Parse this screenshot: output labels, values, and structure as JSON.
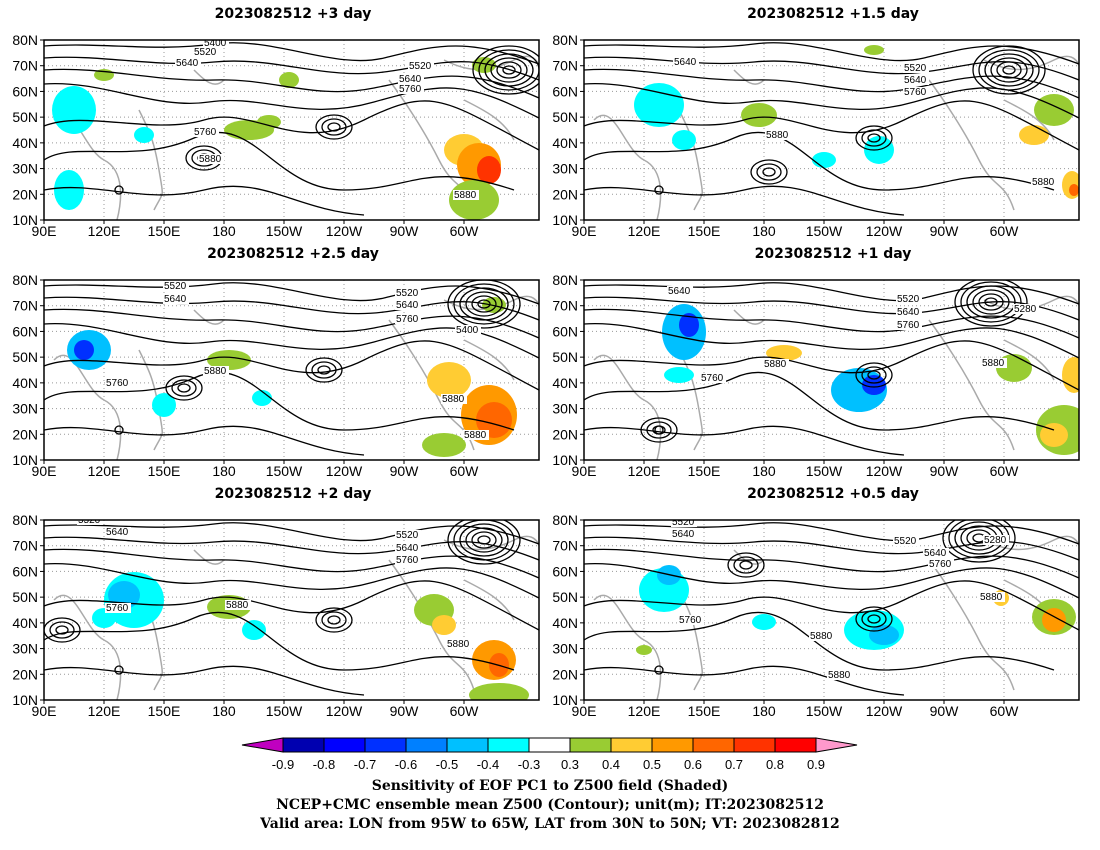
{
  "panels": [
    {
      "title": "2023082512  +3 day"
    },
    {
      "title": "2023082512  +1.5 day"
    },
    {
      "title": "2023082512  +2.5 day"
    },
    {
      "title": "2023082512  +1 day"
    },
    {
      "title": "2023082512  +2 day"
    },
    {
      "title": "2023082512  +0.5 day"
    }
  ],
  "lat_ticks": [
    "10N",
    "20N",
    "30N",
    "40N",
    "50N",
    "60N",
    "70N",
    "80N"
  ],
  "lon_ticks": [
    "90E",
    "120E",
    "150E",
    "180",
    "150W",
    "120W",
    "90W",
    "60W"
  ],
  "contour_labels": [
    "5400",
    "5520",
    "5640",
    "5760",
    "5880",
    "5280"
  ],
  "colorbar": {
    "labels": [
      "-0.9",
      "-0.8",
      "-0.7",
      "-0.6",
      "-0.5",
      "-0.4",
      "-0.3",
      "0.3",
      "0.4",
      "0.5",
      "0.6",
      "0.7",
      "0.8",
      "0.9"
    ],
    "colors": [
      "#c000c0",
      "#0000b0",
      "#0000ff",
      "#0030ff",
      "#0080ff",
      "#00c0ff",
      "#00ffff",
      "#ffffff",
      "#99cc33",
      "#ffcc33",
      "#ff9900",
      "#ff6600",
      "#ff3300",
      "#ff0000",
      "#ff99cc"
    ]
  },
  "caption": {
    "line1": "Sensitivity of EOF PC1 to Z500 field (Shaded)",
    "line2": "NCEP+CMC ensemble mean Z500 (Contour); unit(m); IT:2023082512",
    "line3": "Valid area: LON from 95W to 65W, LAT from 30N to 50N; VT: 2023082812"
  }
}
